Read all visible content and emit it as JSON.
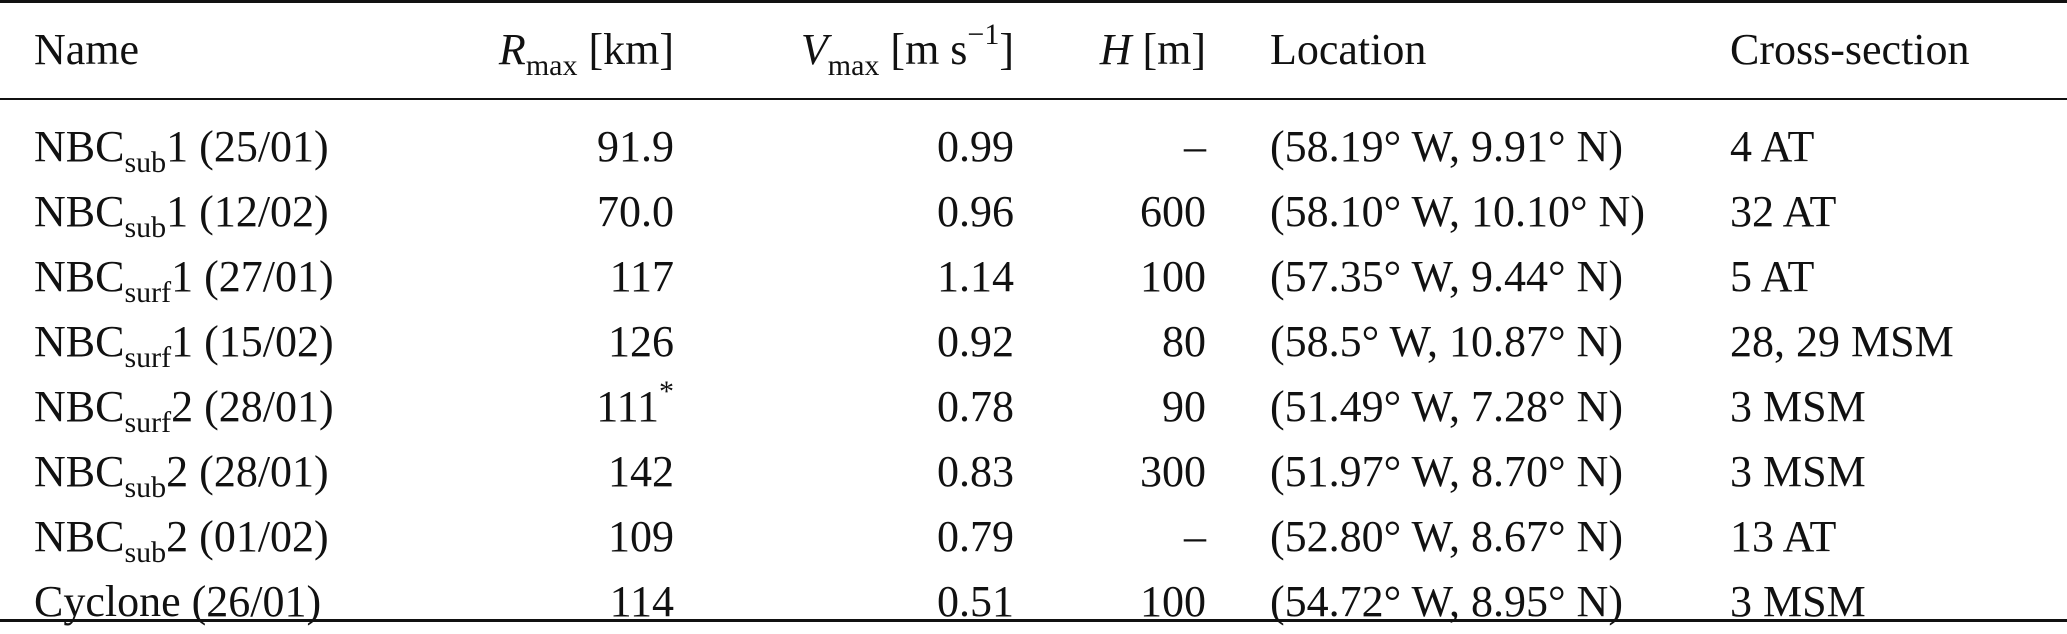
{
  "headers": {
    "name": "Name",
    "rmax_symbol": "R",
    "rmax_sub": "max",
    "rmax_unit": "[km]",
    "vmax_symbol": "V",
    "vmax_sub": "max",
    "vmax_unit_pre": "[m s",
    "vmax_unit_sup": "−1",
    "vmax_unit_post": "]",
    "h_symbol": "H",
    "h_unit": "[m]",
    "location": "Location",
    "cross_section": "Cross-section"
  },
  "rows": [
    {
      "base": "NBC",
      "sub": "sub",
      "suffix": "1 (25/01)",
      "rmax": "91.9",
      "vmax": "0.99",
      "h": "–",
      "location": "(58.19° W, 9.91° N)",
      "cross_section": "4 AT"
    },
    {
      "base": "NBC",
      "sub": "sub",
      "suffix": "1 (12/02)",
      "rmax": "70.0",
      "vmax": "0.96",
      "h": "600",
      "location": "(58.10° W, 10.10° N)",
      "cross_section": "32 AT"
    },
    {
      "base": "NBC",
      "sub": "surf",
      "suffix": "1 (27/01)",
      "rmax": "117",
      "vmax": "1.14",
      "h": "100",
      "location": "(57.35° W, 9.44° N)",
      "cross_section": "5 AT"
    },
    {
      "base": "NBC",
      "sub": "surf",
      "suffix": "1 (15/02)",
      "rmax": "126",
      "vmax": "0.92",
      "h": "80",
      "location": "(58.5° W, 10.87° N)",
      "cross_section": "28, 29 MSM"
    },
    {
      "base": "NBC",
      "sub": "surf",
      "suffix": "2 (28/01)",
      "rmax": "111",
      "rmax_sup": "*",
      "vmax": "0.78",
      "h": "90",
      "location": "(51.49° W, 7.28° N)",
      "cross_section": "3 MSM"
    },
    {
      "base": "NBC",
      "sub": "sub",
      "suffix": "2 (28/01)",
      "rmax": "142",
      "vmax": "0.83",
      "h": "300",
      "location": "(51.97° W, 8.70° N)",
      "cross_section": "3 MSM"
    },
    {
      "base": "NBC",
      "sub": "sub",
      "suffix": "2 (01/02)",
      "rmax": "109",
      "vmax": "0.79",
      "h": "–",
      "location": "(52.80° W, 8.67° N)",
      "cross_section": "13 AT"
    },
    {
      "base": "Cyclone (26/01)",
      "sub": "",
      "suffix": "",
      "rmax": "114",
      "vmax": "0.51",
      "h": "100",
      "location": "(54.72° W, 8.95° N)",
      "cross_section": "3 MSM"
    }
  ]
}
